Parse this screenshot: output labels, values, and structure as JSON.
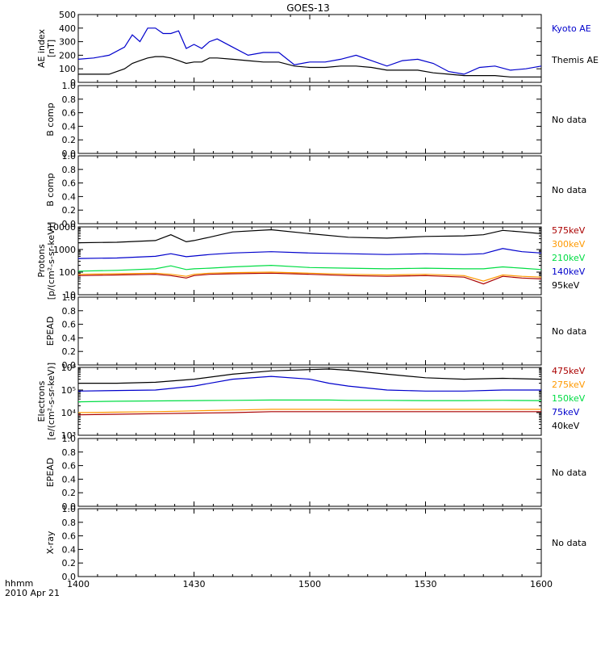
{
  "page": {
    "title": "GOES-13",
    "time_axis": {
      "label_line1": "hhmm",
      "label_line2": "2010 Apr 21",
      "ticks": [
        "1400",
        "1430",
        "1500",
        "1530",
        "1600"
      ],
      "range_minutes": [
        0,
        120
      ]
    },
    "no_data_text": "No data"
  },
  "colors": {
    "black": "#000000",
    "blue": "#0000cc",
    "green": "#00dd44",
    "orange": "#ff9900",
    "red": "#aa0000"
  },
  "chart_data": [
    {
      "type": "line",
      "ylabel_line1": "AE index",
      "ylabel_line2": "[nT]",
      "ylim": [
        0,
        500
      ],
      "yticks": [
        "0",
        "100",
        "200",
        "300",
        "400",
        "500"
      ],
      "x": [
        0,
        4,
        8,
        12,
        14,
        16,
        18,
        20,
        22,
        24,
        26,
        28,
        30,
        32,
        34,
        36,
        40,
        44,
        48,
        52,
        56,
        60,
        64,
        68,
        72,
        76,
        80,
        84,
        88,
        92,
        96,
        100,
        104,
        108,
        112,
        116,
        120
      ],
      "series": [
        {
          "name": "Kyoto AE",
          "color": "blue",
          "values": [
            170,
            180,
            200,
            260,
            350,
            300,
            400,
            400,
            360,
            360,
            380,
            250,
            280,
            250,
            300,
            320,
            260,
            200,
            220,
            220,
            130,
            150,
            150,
            170,
            200,
            160,
            120,
            160,
            170,
            140,
            80,
            60,
            110,
            120,
            90,
            100,
            120
          ]
        },
        {
          "name": "Themis AE",
          "color": "black",
          "values": [
            60,
            60,
            60,
            100,
            140,
            160,
            180,
            190,
            190,
            180,
            160,
            140,
            150,
            150,
            180,
            180,
            170,
            160,
            150,
            150,
            120,
            110,
            110,
            120,
            120,
            110,
            90,
            90,
            90,
            70,
            60,
            50,
            50,
            50,
            40,
            40,
            40
          ]
        }
      ]
    },
    {
      "type": "line",
      "ylabel_line1": "B comp",
      "ylim": [
        0,
        1
      ],
      "yticks": [
        "0.0",
        "0.2",
        "0.4",
        "0.6",
        "0.8",
        "1.0"
      ],
      "series": [],
      "no_data": true
    },
    {
      "type": "line",
      "ylabel_line1": "B comp",
      "ylim": [
        0,
        1
      ],
      "yticks": [
        "0.0",
        "0.2",
        "0.4",
        "0.6",
        "0.8",
        "1.0"
      ],
      "series": [],
      "no_data": true
    },
    {
      "type": "line",
      "log_scale": true,
      "ylabel_line1": "Protons",
      "ylabel_line2": "[p/(cm²-s-sr-keV)]",
      "ylim": [
        10,
        10000
      ],
      "yticks": [
        "10",
        "100",
        "1000",
        "10000"
      ],
      "x": [
        0,
        10,
        20,
        24,
        28,
        30,
        34,
        40,
        50,
        60,
        70,
        80,
        90,
        100,
        105,
        110,
        115,
        120
      ],
      "series": [
        {
          "name": "575keV",
          "color": "red",
          "values": [
            70,
            75,
            80,
            70,
            55,
            70,
            80,
            85,
            90,
            80,
            70,
            65,
            70,
            60,
            30,
            65,
            55,
            50
          ]
        },
        {
          "name": "300keV",
          "color": "orange",
          "values": [
            80,
            85,
            90,
            80,
            65,
            80,
            90,
            95,
            100,
            90,
            80,
            75,
            80,
            70,
            40,
            75,
            65,
            60
          ]
        },
        {
          "name": "210keV",
          "color": "green",
          "values": [
            110,
            120,
            140,
            190,
            130,
            140,
            150,
            170,
            200,
            160,
            150,
            140,
            150,
            140,
            140,
            170,
            150,
            130
          ]
        },
        {
          "name": "140keV",
          "color": "blue",
          "values": [
            400,
            420,
            500,
            650,
            480,
            520,
            600,
            700,
            800,
            700,
            650,
            600,
            650,
            600,
            650,
            1100,
            800,
            700
          ]
        },
        {
          "name": "95keV",
          "color": "black",
          "values": [
            2000,
            2100,
            2500,
            4500,
            2200,
            2500,
            3500,
            6000,
            7500,
            5000,
            3500,
            3200,
            3800,
            4000,
            4500,
            7000,
            6000,
            5000
          ]
        }
      ]
    },
    {
      "type": "line",
      "ylabel_line1": "EPEAD",
      "ylim": [
        0,
        1
      ],
      "yticks": [
        "0.0",
        "0.2",
        "0.4",
        "0.6",
        "0.8",
        "1.0"
      ],
      "series": [],
      "no_data": true
    },
    {
      "type": "line",
      "log_scale": true,
      "ylabel_line1": "Electrons",
      "ylabel_line2": "[e/(cm²-s-sr-keV)]",
      "ylim": [
        1000,
        1000000
      ],
      "yticks": [
        "10³",
        "10⁴",
        "10⁵",
        "10⁶"
      ],
      "x": [
        0,
        10,
        20,
        30,
        40,
        50,
        60,
        65,
        70,
        80,
        90,
        100,
        110,
        120
      ],
      "series": [
        {
          "name": "475keV",
          "color": "red",
          "values": [
            8000,
            8500,
            9000,
            9500,
            10000,
            11000,
            11000,
            11000,
            11000,
            11000,
            11000,
            11000,
            11000,
            11000
          ]
        },
        {
          "name": "275keV",
          "color": "orange",
          "values": [
            10000,
            10500,
            11000,
            12000,
            13000,
            14000,
            14000,
            14000,
            14000,
            14000,
            14000,
            14000,
            14000,
            14000
          ]
        },
        {
          "name": "150keV",
          "color": "green",
          "values": [
            30000,
            32000,
            33000,
            34000,
            35000,
            36000,
            36000,
            36000,
            35000,
            35000,
            34000,
            34000,
            35000,
            34000
          ]
        },
        {
          "name": "75keV",
          "color": "blue",
          "values": [
            90000,
            95000,
            100000,
            150000,
            300000,
            400000,
            300000,
            200000,
            150000,
            100000,
            90000,
            90000,
            100000,
            100000
          ]
        },
        {
          "name": "40keV",
          "color": "black",
          "values": [
            200000,
            200000,
            220000,
            300000,
            500000,
            700000,
            800000,
            850000,
            750000,
            500000,
            350000,
            300000,
            330000,
            300000
          ]
        }
      ]
    },
    {
      "type": "line",
      "ylabel_line1": "EPEAD",
      "ylim": [
        0,
        1
      ],
      "yticks": [
        "0.0",
        "0.2",
        "0.4",
        "0.6",
        "0.8",
        "1.0"
      ],
      "series": [],
      "no_data": true
    },
    {
      "type": "line",
      "ylabel_line1": "X-ray",
      "ylim": [
        0,
        1
      ],
      "yticks": [
        "0.0",
        "0.2",
        "0.4",
        "0.6",
        "0.8",
        "1.0"
      ],
      "series": [],
      "no_data": true
    }
  ]
}
